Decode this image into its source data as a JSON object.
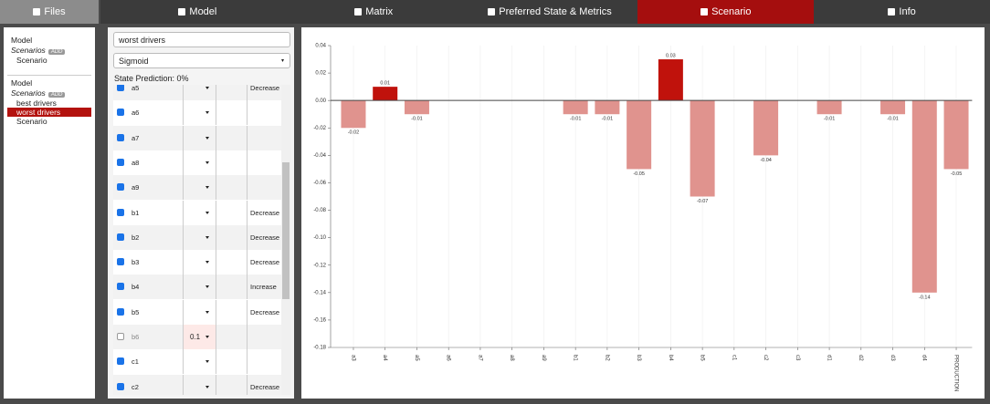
{
  "nav": {
    "files": "Files",
    "tabs": [
      "Model",
      "Matrix",
      "Preferred State & Metrics",
      "Scenario",
      "Info"
    ],
    "active_tab": 3
  },
  "sidebar": {
    "groups": [
      {
        "model": "Model",
        "scenarios": "Scenarios",
        "add": "ADD",
        "items": [
          "Scenario"
        ]
      },
      {
        "model": "Model",
        "scenarios": "Scenarios",
        "add": "ADD",
        "items": [
          "best drivers",
          "worst drivers",
          "Scenario"
        ],
        "selected": 1
      }
    ]
  },
  "scenario": {
    "name": "worst drivers",
    "function": "Sigmoid",
    "state_prediction": "State Prediction: 0%",
    "rows": [
      {
        "name": "a5",
        "checked": true,
        "direction": "Decrease"
      },
      {
        "name": "a6",
        "checked": true
      },
      {
        "name": "a7",
        "checked": true
      },
      {
        "name": "a8",
        "checked": true
      },
      {
        "name": "a9",
        "checked": true
      },
      {
        "name": "b1",
        "checked": true,
        "direction": "Decrease"
      },
      {
        "name": "b2",
        "checked": true,
        "direction": "Decrease"
      },
      {
        "name": "b3",
        "checked": true,
        "direction": "Decrease"
      },
      {
        "name": "b4",
        "checked": true,
        "direction": "Increase"
      },
      {
        "name": "b5",
        "checked": true,
        "direction": "Decrease"
      },
      {
        "name": "b6",
        "checked": false,
        "value": "0.1"
      },
      {
        "name": "c1",
        "checked": true
      },
      {
        "name": "c2",
        "checked": true,
        "direction": "Decrease"
      }
    ]
  },
  "chart_data": {
    "type": "bar",
    "categories": [
      "a3",
      "a4",
      "a5",
      "a6",
      "a7",
      "a8",
      "a9",
      "b1",
      "b2",
      "b3",
      "b4",
      "b5",
      "c1",
      "c2",
      "c3",
      "d1",
      "d2",
      "d3",
      "d4",
      "PRODUCTION"
    ],
    "values": [
      -0.02,
      0.01,
      -0.01,
      null,
      null,
      null,
      null,
      -0.01,
      -0.01,
      -0.05,
      0.03,
      -0.07,
      null,
      -0.04,
      null,
      -0.01,
      null,
      -0.01,
      -0.14,
      -0.05
    ],
    "positive_color": "#c0120c",
    "negative_color": "#e0938e",
    "ylim": [
      -0.18,
      0.04
    ],
    "yticks": [
      0.04,
      0.02,
      {
        "value": 0,
        "label": "0.00"
      },
      -0.02,
      -0.04,
      -0.06,
      -0.08,
      {
        "value": -0.1,
        "label": "-0.10"
      },
      -0.12,
      -0.14,
      -0.16,
      -0.18
    ],
    "grid": true
  }
}
